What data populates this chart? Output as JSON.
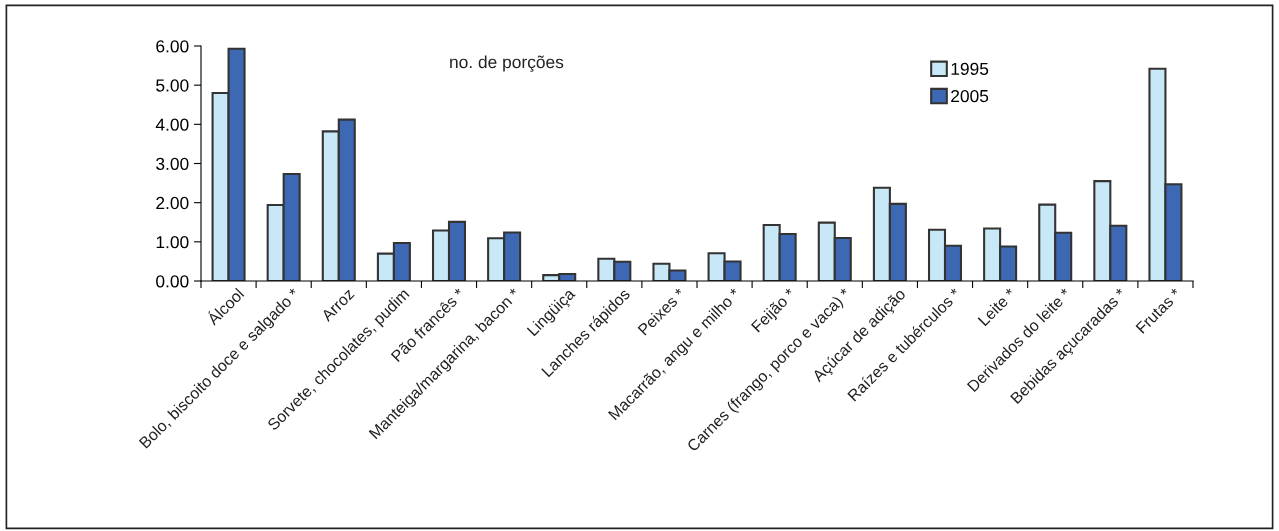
{
  "chart_data": {
    "type": "bar",
    "categories": [
      "Álcool",
      "Bolo, biscoito doce e salgado *",
      "Arroz",
      "Sorvete, chocolates, pudim",
      "Pão francês *",
      "Manteiga/margarina, bacon *",
      "Lingüiça",
      "Lanches rápidos",
      "Peixes *",
      "Macarrão, angu e milho *",
      "Feijão *",
      "Carnes (frango, porco e vaca) *",
      "Açúcar de adição",
      "Raízes e tubérculos *",
      "Leite *",
      "Derivados do leite *",
      "Bebidas açucaradas *",
      "Frutas *"
    ],
    "series": [
      {
        "name": "1995",
        "color": "#c8e8f8",
        "values": [
          4.8,
          1.94,
          3.82,
          0.7,
          1.29,
          1.09,
          0.15,
          0.57,
          0.44,
          0.71,
          1.43,
          1.49,
          2.38,
          1.31,
          1.34,
          1.95,
          2.55,
          5.42
        ]
      },
      {
        "name": "2005",
        "color": "#3d68b4",
        "values": [
          5.93,
          2.73,
          4.12,
          0.97,
          1.51,
          1.24,
          0.18,
          0.49,
          0.27,
          0.5,
          1.2,
          1.1,
          1.97,
          0.9,
          0.88,
          1.23,
          1.41,
          2.47
        ]
      }
    ],
    "ylim": [
      0,
      6
    ],
    "yticks": [
      {
        "value": 0,
        "label": "0.00"
      },
      {
        "value": 1,
        "label": "1.00"
      },
      {
        "value": 2,
        "label": "2.00"
      },
      {
        "value": 3,
        "label": "3.00"
      },
      {
        "value": 4,
        "label": "4.00"
      },
      {
        "value": 5,
        "label": "5.00"
      },
      {
        "value": 6,
        "label": "6.00"
      }
    ],
    "annotations": [
      "no. de porções"
    ],
    "grid": false,
    "legend": "top right"
  }
}
